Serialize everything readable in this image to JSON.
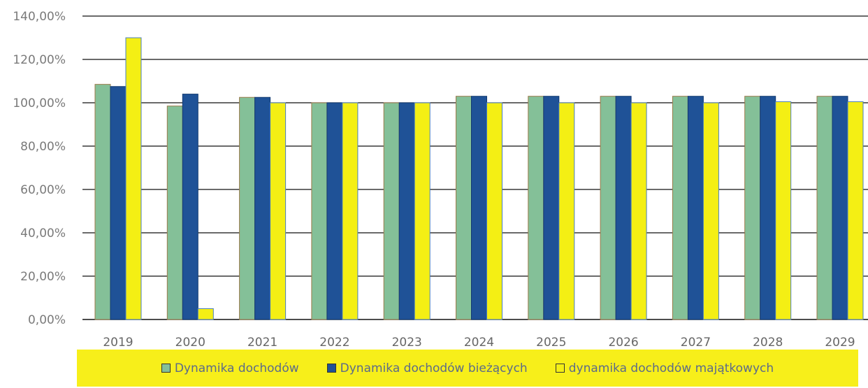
{
  "chart_data": {
    "type": "bar",
    "categories": [
      "2019",
      "2020",
      "2021",
      "2022",
      "2023",
      "2024",
      "2025",
      "2026",
      "2027",
      "2028",
      "2029"
    ],
    "series": [
      {
        "name": "Dynamika dochodów",
        "color": "#84c098",
        "values": [
          108.5,
          98.5,
          102.5,
          100.0,
          100.0,
          103.0,
          103.0,
          103.0,
          103.0,
          103.0,
          103.0
        ]
      },
      {
        "name": "Dynamika dochodów bieżących",
        "color": "#1f5297",
        "values": [
          107.5,
          104.0,
          102.5,
          100.0,
          100.0,
          103.0,
          103.0,
          103.0,
          103.0,
          103.0,
          103.0
        ]
      },
      {
        "name": "dynamika  dochodów majątkowych",
        "color": "#f4ef14",
        "values": [
          130.0,
          5.0,
          100.0,
          100.0,
          100.0,
          100.0,
          100.0,
          100.0,
          100.0,
          100.5,
          100.5
        ]
      }
    ],
    "yticks": [
      "0,00%",
      "20,00%",
      "40,00%",
      "60,00%",
      "80,00%",
      "100,00%",
      "120,00%",
      "140,00%"
    ],
    "ylim": [
      0,
      140
    ],
    "grid": true,
    "legend_position": "bottom",
    "legend_background": "#f7ef1a"
  }
}
